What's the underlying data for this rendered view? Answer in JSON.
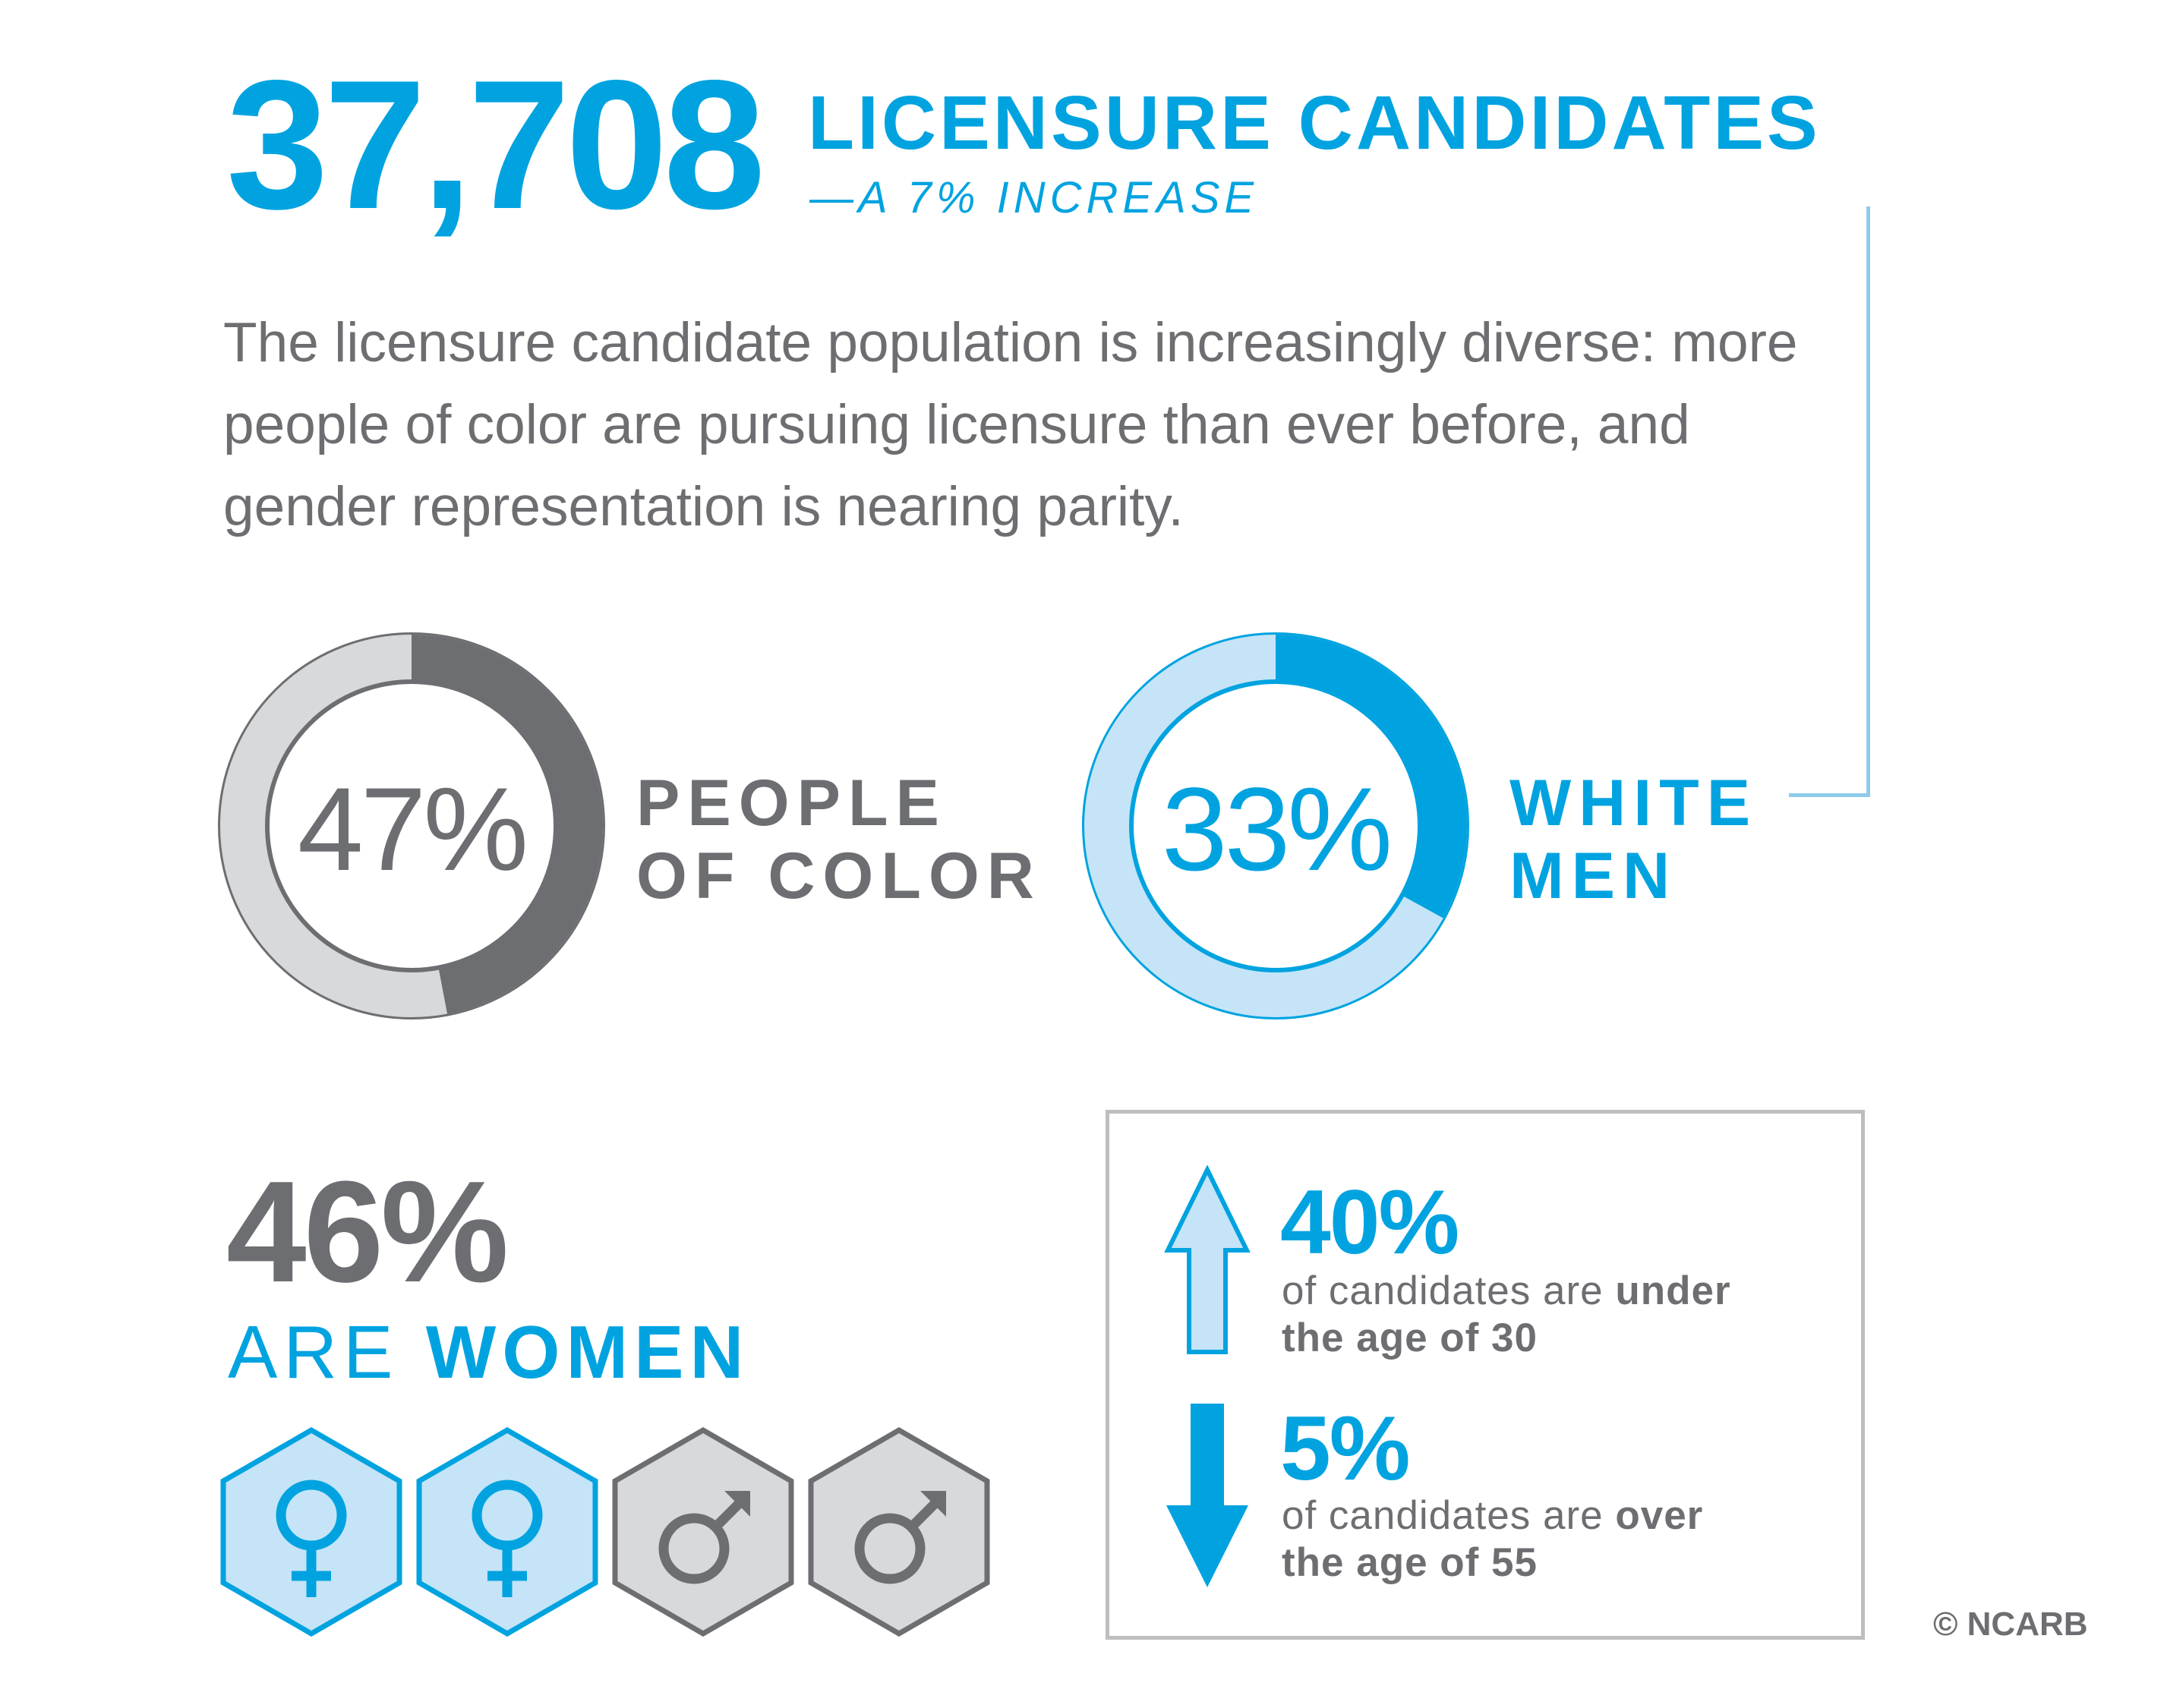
{
  "header": {
    "big_number": "37,708",
    "headline": "LICENSURE CANDIDATES",
    "subheadline": "—A 7% INCREASE"
  },
  "intro_text": "The licensure candidate population is increasingly diverse: more people of color are pursuing licensure than ever before, and gender representation is nearing parity.",
  "donuts": {
    "people_of_color": {
      "value_text": "47%",
      "label_line1": "PEOPLE",
      "label_line2": "OF COLOR"
    },
    "white_men": {
      "value_text": "33%",
      "label_line1": "WHITE",
      "label_line2": "MEN"
    }
  },
  "women": {
    "value_text": "46%",
    "label_prefix": "ARE ",
    "label_emphasis": "WOMEN"
  },
  "age_stats": {
    "under_30": {
      "value_text": "40%",
      "text_plain": "of candidates are ",
      "text_bold_1": "under",
      "text_bold_2": "the age of 30"
    },
    "over_55": {
      "value_text": "5%",
      "text_plain": "of candidates are ",
      "text_bold_1": "over",
      "text_bold_2": "the age of 55"
    }
  },
  "copyright": "© NCARB",
  "colors": {
    "accent_blue": "#00a3e0",
    "light_blue": "#c5e4f7",
    "dark_gray": "#6d6e71",
    "light_gray": "#d8d9da",
    "connector_blue": "#8fcbea"
  },
  "icons": {
    "gender_row": [
      "female-icon",
      "female-icon",
      "male-icon",
      "male-icon"
    ]
  },
  "chart_data": [
    {
      "type": "pie",
      "categories": [
        "PEOPLE OF COLOR",
        ""
      ],
      "values": [
        47,
        53
      ]
    },
    {
      "type": "pie",
      "categories": [
        "WHITE MEN",
        ""
      ],
      "values": [
        33,
        67
      ]
    }
  ]
}
